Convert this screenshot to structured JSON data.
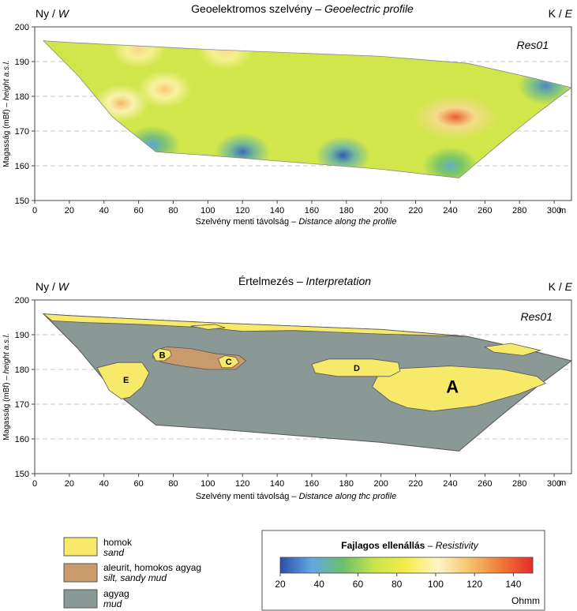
{
  "chart_data": [
    {
      "type": "heatmap",
      "title": "Geoelektromos szelvény",
      "title_en": "Geoelectric profile",
      "corner_left": "Ny",
      "corner_left_en": "W",
      "corner_right": "K",
      "corner_right_en": "E",
      "profile_label": "Res01",
      "xlabel": "Szelvény menti távolság",
      "xlabel_en": "Distance along the profile",
      "ylabel": "Magasság (mBf)",
      "ylabel_en": "height a.s.l.",
      "x_unit": "m",
      "xlim": [
        0,
        310
      ],
      "ylim": [
        150,
        200
      ],
      "x_ticks": [
        0,
        20,
        40,
        60,
        80,
        100,
        120,
        140,
        160,
        180,
        200,
        220,
        240,
        260,
        280,
        300
      ],
      "y_ticks": [
        150,
        160,
        170,
        180,
        190,
        200
      ],
      "grid": "dashed at 160, 170, 180, 190",
      "outline": [
        [
          5,
          196
        ],
        [
          20,
          195.5
        ],
        [
          60,
          194.5
        ],
        [
          100,
          193.5
        ],
        [
          150,
          192.5
        ],
        [
          200,
          191.5
        ],
        [
          250,
          189.5
        ],
        [
          290,
          185
        ],
        [
          310,
          182.5
        ],
        [
          290,
          175
        ],
        [
          270,
          167
        ],
        [
          245,
          156.5
        ],
        [
          200,
          159
        ],
        [
          150,
          161
        ],
        [
          100,
          163
        ],
        [
          70,
          164
        ],
        [
          45,
          174
        ],
        [
          25,
          186
        ],
        [
          5,
          196
        ]
      ],
      "anomalies": [
        {
          "kind": "high",
          "x": 243,
          "y": 174,
          "value": 140
        },
        {
          "kind": "high",
          "x": 50,
          "y": 178,
          "value": 120
        },
        {
          "kind": "high",
          "x": 75,
          "y": 182,
          "value": 115
        },
        {
          "kind": "high",
          "x": 60,
          "y": 193.5,
          "value": 112
        },
        {
          "kind": "high",
          "x": 110,
          "y": 193,
          "value": 110
        },
        {
          "kind": "low",
          "x": 120,
          "y": 164,
          "value": 25
        },
        {
          "kind": "low",
          "x": 178,
          "y": 163,
          "value": 22
        },
        {
          "kind": "low",
          "x": 68,
          "y": 166,
          "value": 35
        },
        {
          "kind": "low",
          "x": 240,
          "y": 160,
          "value": 40
        },
        {
          "kind": "low",
          "x": 295,
          "y": 183,
          "value": 30
        }
      ]
    },
    {
      "type": "area",
      "title": "Értelmezés",
      "title_en": "Interpretation",
      "corner_left": "Ny",
      "corner_left_en": "W",
      "corner_right": "K",
      "corner_right_en": "E",
      "profile_label": "Res01",
      "xlabel": "Szelvény menti távolság",
      "xlabel_en": "Distance along thc profile",
      "ylabel": "Magasság (mBf)",
      "ylabel_en": "height a.s.l.",
      "x_unit": "m",
      "xlim": [
        0,
        310
      ],
      "ylim": [
        150,
        200
      ],
      "x_ticks": [
        0,
        20,
        40,
        60,
        80,
        100,
        120,
        140,
        160,
        180,
        200,
        220,
        240,
        260,
        280,
        300
      ],
      "y_ticks": [
        150,
        160,
        170,
        180,
        190,
        200
      ],
      "units": [
        {
          "label": "A",
          "class": "sand",
          "polygon": [
            [
              200,
              180
            ],
            [
              220,
              180.5
            ],
            [
              240,
              181
            ],
            [
              270,
              180
            ],
            [
              290,
              178
            ],
            [
              295,
              176
            ],
            [
              280,
              173
            ],
            [
              255,
              169.5
            ],
            [
              230,
              168
            ],
            [
              215,
              169
            ],
            [
              205,
              171
            ],
            [
              195,
              175
            ],
            [
              200,
              180
            ]
          ]
        },
        {
          "label": "B",
          "class": "sand",
          "polygon": [
            [
              68,
              184.5
            ],
            [
              72,
              186
            ],
            [
              78,
              185.5
            ],
            [
              79,
              184
            ],
            [
              75,
              182.5
            ],
            [
              70,
              182.5
            ],
            [
              68,
              184.5
            ]
          ]
        },
        {
          "label": "C",
          "class": "sand",
          "polygon": [
            [
              106,
              183
            ],
            [
              110,
              184
            ],
            [
              116,
              183.5
            ],
            [
              118,
              182
            ],
            [
              114,
              180.5
            ],
            [
              108,
              180.5
            ],
            [
              106,
              183
            ]
          ]
        },
        {
          "label": "D",
          "class": "sand",
          "polygon": [
            [
              160,
              181.5
            ],
            [
              170,
              183
            ],
            [
              195,
              183
            ],
            [
              210,
              182
            ],
            [
              211,
              179.5
            ],
            [
              205,
              178
            ],
            [
              175,
              178
            ],
            [
              162,
              179
            ],
            [
              160,
              181.5
            ]
          ]
        },
        {
          "label": "E",
          "class": "sand",
          "polygon": [
            [
              36,
              180.5
            ],
            [
              48,
              182
            ],
            [
              62,
              182
            ],
            [
              66,
              179
            ],
            [
              62,
              175
            ],
            [
              55,
              172
            ],
            [
              50,
              171.5
            ],
            [
              43,
              174
            ],
            [
              36,
              180.5
            ]
          ]
        },
        {
          "label": "",
          "class": "silt",
          "polygon": [
            [
              68,
              183.5
            ],
            [
              70,
              185.5
            ],
            [
              76,
              186.5
            ],
            [
              90,
              186
            ],
            [
              105,
              184.5
            ],
            [
              118,
              184
            ],
            [
              122,
              182.5
            ],
            [
              116,
              180
            ],
            [
              100,
              180
            ],
            [
              85,
              181
            ],
            [
              74,
              182
            ],
            [
              68,
              183.5
            ]
          ]
        },
        {
          "label": "",
          "class": "sand",
          "polygon": [
            [
              5,
              196
            ],
            [
              20,
              195.5
            ],
            [
              60,
              194.5
            ],
            [
              100,
              193.5
            ],
            [
              150,
              192.5
            ],
            [
              200,
              191.5
            ],
            [
              250,
              189.5
            ],
            [
              200,
              190.2
            ],
            [
              150,
              191.2
            ],
            [
              120,
              191
            ],
            [
              100,
              192
            ],
            [
              60,
              193
            ],
            [
              30,
              193.5
            ],
            [
              10,
              194
            ],
            [
              5,
              196
            ]
          ]
        },
        {
          "label": "",
          "class": "sand",
          "polygon": [
            [
              90,
              192.5
            ],
            [
              100,
              191.5
            ],
            [
              110,
              192
            ],
            [
              104,
              193
            ],
            [
              90,
              192.5
            ]
          ]
        },
        {
          "label": "",
          "class": "sand",
          "polygon": [
            [
              260,
              186.5
            ],
            [
              275,
              187.5
            ],
            [
              292,
              185.5
            ],
            [
              282,
              184
            ],
            [
              265,
              185
            ],
            [
              260,
              186.5
            ]
          ]
        }
      ]
    }
  ],
  "legend_units": [
    {
      "name": "homok",
      "name_en": "sand",
      "color": "#f7ea6a"
    },
    {
      "name": "aleurit, homokos agyag",
      "name_en": "silt, sandy mud",
      "color": "#c99a6b"
    },
    {
      "name": "agyag",
      "name_en": "mud",
      "color": "#8a9896"
    }
  ],
  "colorbar": {
    "title": "Fajlagos ellenállás",
    "title_en": "Resistivity",
    "ticks": [
      20,
      40,
      60,
      80,
      100,
      120,
      140
    ],
    "range": [
      20,
      150
    ],
    "unit": "Ohmm",
    "stops": [
      "#2b4fa8",
      "#63a7e3",
      "#6cc06b",
      "#c8e54a",
      "#f5ec4a",
      "#fff5c8",
      "#f6c36a",
      "#ef7a35",
      "#e62a2a"
    ]
  },
  "colors": {
    "clay": "#8a9896",
    "sand": "#f7ea6a",
    "silt": "#c99a6b",
    "outline": "#555555"
  }
}
